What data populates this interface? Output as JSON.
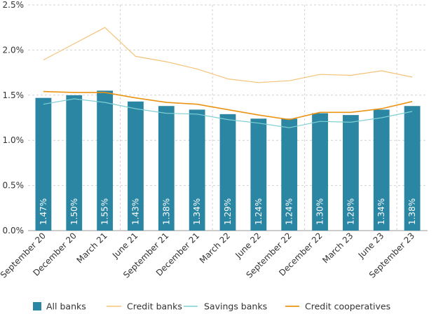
{
  "chart_data": {
    "type": "bar",
    "categories": [
      "September 20",
      "December 20",
      "March 21",
      "June 21",
      "September 21",
      "December 21",
      "March 22",
      "June 22",
      "September 22",
      "December 22",
      "March 23",
      "June 23",
      "September 23"
    ],
    "ylim": [
      0,
      2.5
    ],
    "yticks": [
      "0.0%",
      "0.5%",
      "1.0%",
      "1.5%",
      "2.0%",
      "2.5%"
    ],
    "ytick_values": [
      0,
      0.5,
      1.0,
      1.5,
      2.0,
      2.5
    ],
    "grid": "horizontal and vertical dashed",
    "legend_position": "bottom",
    "bar_series": {
      "name": "All banks",
      "color": "#2a86a3",
      "values": [
        1.47,
        1.5,
        1.55,
        1.43,
        1.38,
        1.34,
        1.29,
        1.24,
        1.24,
        1.3,
        1.28,
        1.34,
        1.38
      ],
      "labels": [
        "1.47%",
        "1.50%",
        "1.55%",
        "1.43%",
        "1.38%",
        "1.34%",
        "1.29%",
        "1.24%",
        "1.24%",
        "1.30%",
        "1.28%",
        "1.34%",
        "1.38%"
      ]
    },
    "line_series": [
      {
        "name": "Credit banks",
        "color": "#f5c27a",
        "values": [
          1.89,
          2.07,
          2.25,
          1.93,
          1.87,
          1.79,
          1.68,
          1.64,
          1.66,
          1.73,
          1.72,
          1.77,
          1.7
        ]
      },
      {
        "name": "Savings banks",
        "color": "#7fcfd3",
        "values": [
          1.4,
          1.46,
          1.42,
          1.35,
          1.3,
          1.29,
          1.23,
          1.19,
          1.14,
          1.21,
          1.2,
          1.25,
          1.32
        ]
      },
      {
        "name": "Credit cooperatives",
        "color": "#eb9413",
        "values": [
          1.54,
          1.53,
          1.53,
          1.47,
          1.42,
          1.4,
          1.34,
          1.28,
          1.23,
          1.31,
          1.31,
          1.35,
          1.43
        ]
      }
    ]
  }
}
